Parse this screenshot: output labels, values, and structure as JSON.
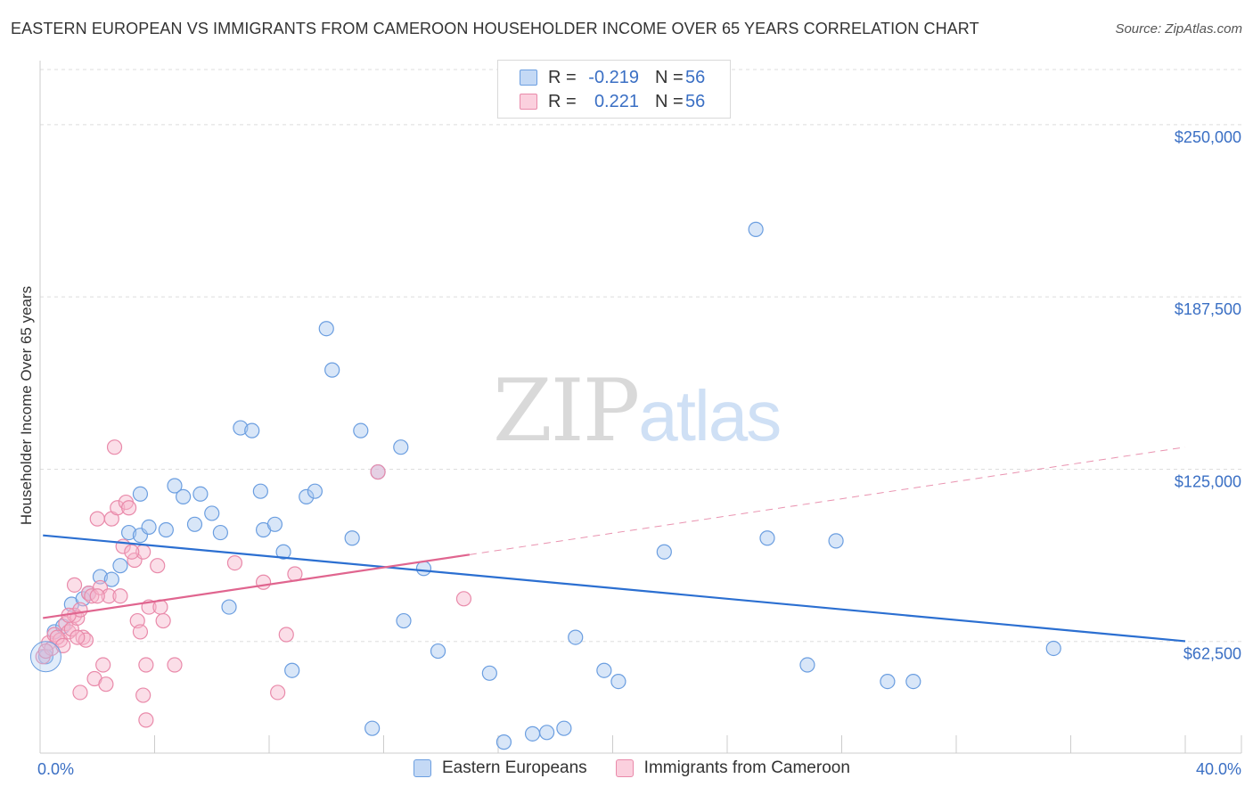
{
  "title": "EASTERN EUROPEAN VS IMMIGRANTS FROM CAMEROON HOUSEHOLDER INCOME OVER 65 YEARS CORRELATION CHART",
  "source": "Source: ZipAtlas.com",
  "watermark": {
    "zip": "ZIP",
    "atlas": "atlas"
  },
  "colors": {
    "blue_fill": "#a8c8f0",
    "blue_stroke": "#6b9ee0",
    "blue_line": "#2b6fd1",
    "pink_fill": "#f7b6cb",
    "pink_stroke": "#e98aaa",
    "pink_line": "#e0658f",
    "axis_text": "#3a6fc4",
    "grid": "#dddddd"
  },
  "legend": {
    "rows": [
      {
        "r_label": "R =",
        "r_value": "-0.219",
        "n_label": "N =",
        "n_value": "56"
      },
      {
        "r_label": "R =",
        "r_value": "0.221",
        "n_label": "N =",
        "n_value": "56"
      }
    ]
  },
  "bottom_legend": {
    "series1": "Eastern Europeans",
    "series2": "Immigrants from Cameroon"
  },
  "chart_data": {
    "type": "scatter",
    "title": "EASTERN EUROPEAN VS IMMIGRANTS FROM CAMEROON HOUSEHOLDER INCOME OVER 65 YEARS CORRELATION CHART",
    "xlabel": "",
    "ylabel": "Householder Income Over 65 years",
    "xlim": [
      0,
      40
    ],
    "ylim": [
      22000,
      270000
    ],
    "x_tick_labels": [
      {
        "value": 0,
        "label": "0.0%"
      },
      {
        "value": 40,
        "label": "40.0%"
      }
    ],
    "y_ticks": [
      {
        "value": 62500,
        "label": "$62,500"
      },
      {
        "value": 125000,
        "label": "$125,000"
      },
      {
        "value": 187500,
        "label": "$187,500"
      },
      {
        "value": 250000,
        "label": "$250,000"
      }
    ],
    "series": [
      {
        "name": "Eastern Europeans",
        "r": -0.219,
        "n": 56,
        "trend": {
          "x0": 0.1,
          "y0": 101000,
          "x1": 40,
          "y1": 62600,
          "dashed_to": null
        },
        "points": [
          [
            0.2,
            57000
          ],
          [
            0.5,
            66000
          ],
          [
            0.8,
            68000
          ],
          [
            1.1,
            76000
          ],
          [
            1.5,
            78000
          ],
          [
            1.7,
            80000
          ],
          [
            2.1,
            86000
          ],
          [
            2.5,
            85000
          ],
          [
            2.8,
            90000
          ],
          [
            3.1,
            102000
          ],
          [
            3.5,
            101000
          ],
          [
            3.5,
            116000
          ],
          [
            3.8,
            104000
          ],
          [
            4.4,
            103000
          ],
          [
            4.7,
            119000
          ],
          [
            5.0,
            115000
          ],
          [
            5.4,
            105000
          ],
          [
            5.6,
            116000
          ],
          [
            6.0,
            109000
          ],
          [
            6.3,
            102000
          ],
          [
            6.6,
            75000
          ],
          [
            7.0,
            140000
          ],
          [
            7.4,
            139000
          ],
          [
            7.7,
            117000
          ],
          [
            7.8,
            103000
          ],
          [
            8.2,
            105000
          ],
          [
            8.5,
            95000
          ],
          [
            8.8,
            52000
          ],
          [
            9.3,
            115000
          ],
          [
            9.6,
            117000
          ],
          [
            10.0,
            176000
          ],
          [
            10.2,
            161000
          ],
          [
            10.9,
            100000
          ],
          [
            11.2,
            139000
          ],
          [
            11.6,
            31000
          ],
          [
            11.8,
            124000
          ],
          [
            12.6,
            133000
          ],
          [
            12.7,
            70000
          ],
          [
            13.4,
            89000
          ],
          [
            13.9,
            59000
          ],
          [
            15.7,
            51000
          ],
          [
            16.2,
            26000
          ],
          [
            17.2,
            29000
          ],
          [
            17.7,
            29500
          ],
          [
            18.3,
            31000
          ],
          [
            18.7,
            64000
          ],
          [
            19.7,
            52000
          ],
          [
            20.2,
            48000
          ],
          [
            21.8,
            95000
          ],
          [
            25.0,
            212000
          ],
          [
            25.4,
            100000
          ],
          [
            26.8,
            54000
          ],
          [
            27.8,
            99000
          ],
          [
            29.6,
            48000
          ],
          [
            30.5,
            48000
          ],
          [
            35.4,
            60000
          ]
        ]
      },
      {
        "name": "Immigrants from Cameroon",
        "r": 0.221,
        "n": 56,
        "trend": {
          "x0": 0.1,
          "y0": 71000,
          "x1": 15.0,
          "y1": 94000,
          "dashed_to": {
            "x": 40,
            "y": 133000
          }
        },
        "points": [
          [
            0.1,
            57000
          ],
          [
            0.3,
            62000
          ],
          [
            0.4,
            60000
          ],
          [
            0.5,
            65000
          ],
          [
            0.7,
            63000
          ],
          [
            0.9,
            69000
          ],
          [
            1.0,
            66000
          ],
          [
            1.1,
            67000
          ],
          [
            1.2,
            72000
          ],
          [
            1.2,
            83000
          ],
          [
            1.3,
            71000
          ],
          [
            1.4,
            74000
          ],
          [
            1.4,
            44000
          ],
          [
            1.5,
            64000
          ],
          [
            1.6,
            63000
          ],
          [
            1.7,
            80000
          ],
          [
            1.8,
            79000
          ],
          [
            1.9,
            49000
          ],
          [
            2.0,
            107000
          ],
          [
            2.1,
            82000
          ],
          [
            2.2,
            54000
          ],
          [
            2.3,
            47000
          ],
          [
            2.4,
            79000
          ],
          [
            2.5,
            107000
          ],
          [
            2.6,
            133000
          ],
          [
            2.7,
            111000
          ],
          [
            2.8,
            79000
          ],
          [
            2.9,
            97000
          ],
          [
            3.0,
            113000
          ],
          [
            3.1,
            111000
          ],
          [
            3.3,
            92000
          ],
          [
            3.4,
            70000
          ],
          [
            3.5,
            66000
          ],
          [
            3.6,
            95000
          ],
          [
            3.6,
            43000
          ],
          [
            3.7,
            34000
          ],
          [
            3.7,
            54000
          ],
          [
            3.8,
            75000
          ],
          [
            4.1,
            90000
          ],
          [
            4.2,
            75000
          ],
          [
            4.3,
            70000
          ],
          [
            4.7,
            54000
          ],
          [
            6.8,
            91000
          ],
          [
            7.8,
            84000
          ],
          [
            8.3,
            44000
          ],
          [
            8.6,
            65000
          ],
          [
            8.9,
            87000
          ],
          [
            11.8,
            124000
          ],
          [
            14.8,
            78000
          ],
          [
            0.2,
            59000
          ],
          [
            0.6,
            64000
          ],
          [
            0.8,
            61000
          ],
          [
            1.0,
            72000
          ],
          [
            1.3,
            64000
          ],
          [
            2.0,
            79000
          ],
          [
            3.2,
            95000
          ]
        ]
      }
    ]
  }
}
